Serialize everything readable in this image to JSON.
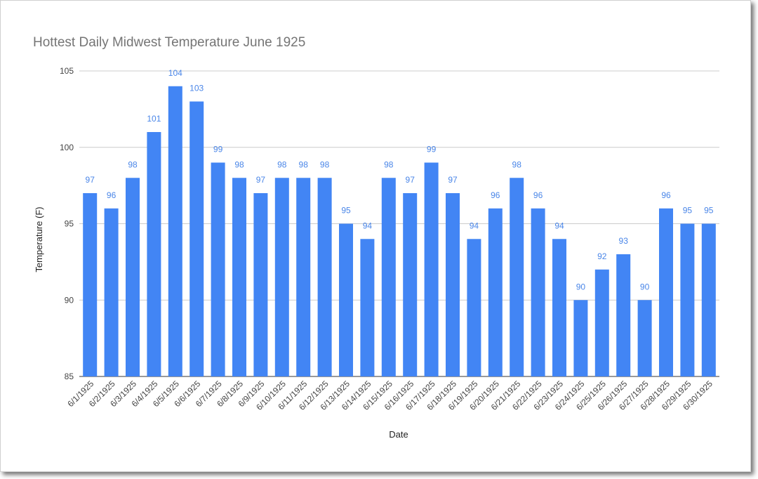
{
  "chart_data": {
    "type": "bar",
    "title": "Hottest Daily Midwest Temperature  June 1925",
    "xlabel": "Date",
    "ylabel": "Temperature (F)",
    "ylim": [
      85,
      105
    ],
    "yticks": [
      85,
      90,
      95,
      100,
      105
    ],
    "grid": true,
    "legend": "none",
    "bar_color": "#4285f4",
    "label_color": "#4a86e8",
    "categories": [
      "6/1/1925",
      "6/2/1925",
      "6/3/1925",
      "6/4/1925",
      "6/5/1925",
      "6/6/1925",
      "6/7/1925",
      "6/8/1925",
      "6/9/1925",
      "6/10/1925",
      "6/11/1925",
      "6/12/1925",
      "6/13/1925",
      "6/14/1925",
      "6/15/1925",
      "6/16/1925",
      "6/17/1925",
      "6/18/1925",
      "6/19/1925",
      "6/20/1925",
      "6/21/1925",
      "6/22/1925",
      "6/23/1925",
      "6/24/1925",
      "6/25/1925",
      "6/26/1925",
      "6/27/1925",
      "6/28/1925",
      "6/29/1925",
      "6/30/1925"
    ],
    "values": [
      97,
      96,
      98,
      101,
      104,
      103,
      99,
      98,
      97,
      98,
      98,
      98,
      95,
      94,
      98,
      97,
      99,
      97,
      94,
      96,
      98,
      96,
      94,
      90,
      92,
      93,
      90,
      96,
      95,
      95
    ]
  }
}
